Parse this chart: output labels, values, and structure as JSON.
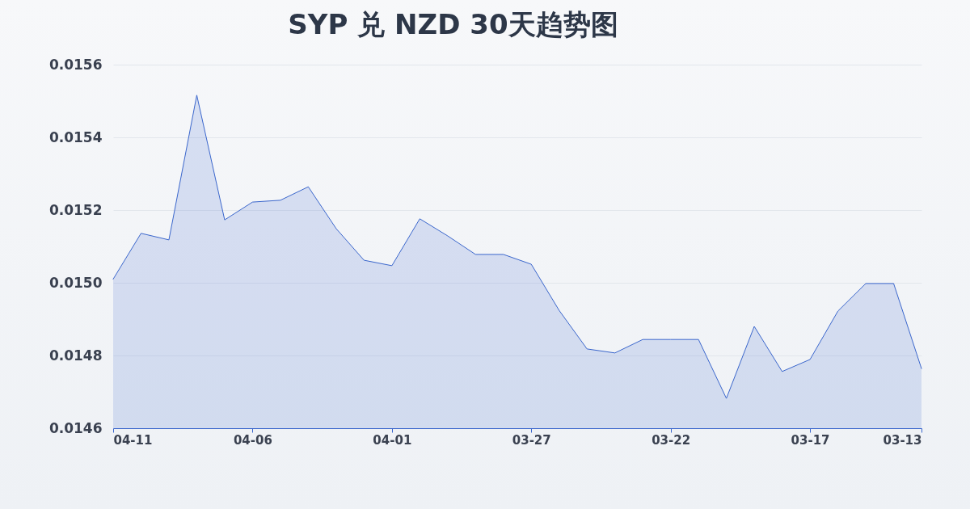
{
  "chart_data": {
    "type": "area",
    "title": "SYP 兑 NZD 30天趋势图",
    "x": [
      "--04-11",
      "--04-10",
      "--04-09",
      "--04-08",
      "--04-07",
      "--04-06",
      "--04-05",
      "--04-04",
      "--04-03",
      "--04-02",
      "--04-01",
      "--03-31",
      "--03-30",
      "--03-29",
      "--03-28",
      "--03-27",
      "--03-26",
      "--03-25",
      "--03-24",
      "--03-23",
      "--03-22",
      "--03-21",
      "--03-20",
      "--03-19",
      "--03-18",
      "--03-17",
      "--03-16",
      "--03-15",
      "--03-14",
      "--03-13"
    ],
    "xlim": [
      "--04-11",
      "--03-13"
    ],
    "xticks": [
      {
        "value": "--04-11",
        "label": "04-11"
      },
      {
        "value": "--04-06",
        "label": "04-06"
      },
      {
        "value": "--04-01",
        "label": "04-01"
      },
      {
        "value": "--03-27",
        "label": "03-27"
      },
      {
        "value": "--03-22",
        "label": "03-22"
      },
      {
        "value": "--03-17",
        "label": "03-17"
      },
      {
        "value": "--03-13",
        "label": "03-13"
      }
    ],
    "series": [
      {
        "color": "#3a66cc",
        "values": [
          0.01501,
          0.015136,
          0.015118,
          0.015516,
          0.015173,
          0.015222,
          0.015227,
          0.015264,
          0.015149,
          0.015062,
          0.015047,
          0.015176,
          0.015129,
          0.015078,
          0.015078,
          0.015051,
          0.014924,
          0.014818,
          0.014807,
          0.014844,
          0.014844,
          0.014844,
          0.014682,
          0.01488,
          0.014756,
          0.014789,
          0.014922,
          0.014998,
          0.014998,
          0.014764
        ]
      }
    ],
    "ylim": [
      0.0146,
      0.0156
    ],
    "yticks": [
      0.0146,
      0.0148,
      {
        "value": 0.015,
        "label": "0.0150"
      },
      0.0152,
      0.0154,
      0.0156
    ],
    "grid": "y"
  }
}
